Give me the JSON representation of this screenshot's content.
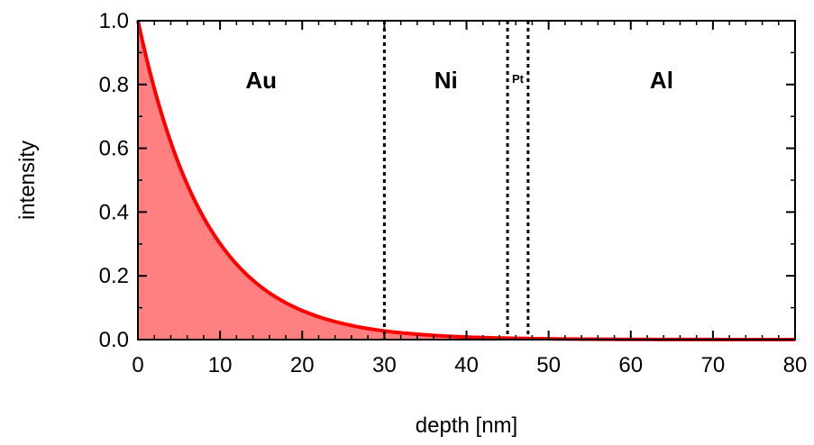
{
  "chart_data": {
    "type": "area",
    "xlabel": "depth [nm]",
    "ylabel": "intensity",
    "xlim": [
      0,
      80
    ],
    "ylim": [
      0,
      1.0
    ],
    "x_ticks": [
      "0",
      "10",
      "20",
      "30",
      "40",
      "50",
      "60",
      "70",
      "80"
    ],
    "y_ticks": [
      "0.0",
      "0.2",
      "0.4",
      "0.6",
      "0.8",
      "1.0"
    ],
    "grid": false,
    "series": [
      {
        "x": [
          0,
          5,
          10,
          15,
          20,
          25,
          30,
          35,
          40,
          45,
          50,
          55,
          60,
          65,
          70,
          75,
          80
        ],
        "values": [
          1.0,
          0.549,
          0.301,
          0.165,
          0.091,
          0.05,
          0.027,
          0.015,
          0.008,
          0.0045,
          0.0025,
          0.0014,
          0.0007,
          0.0004,
          0.0002,
          0.0001,
          0.0001
        ],
        "color": "#ff0000",
        "fill": "#ff8080"
      }
    ],
    "boundaries": [
      30,
      45,
      47.5
    ],
    "regions": [
      {
        "label": "Au",
        "x": 15
      },
      {
        "label": "Ni",
        "x": 37.5
      },
      {
        "label": "Pt",
        "x": 46.25
      },
      {
        "label": "Al",
        "x": 63.75
      }
    ]
  }
}
